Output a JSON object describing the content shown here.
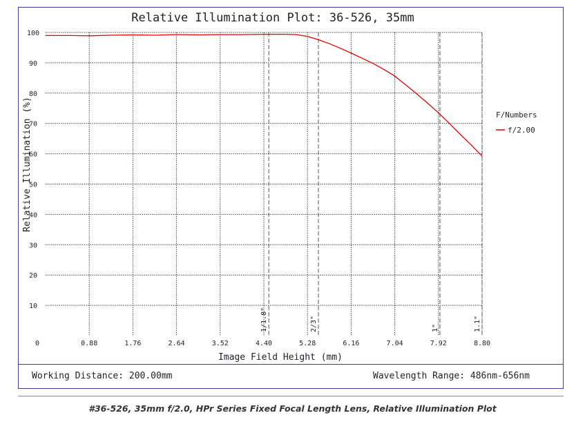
{
  "chart_data": {
    "type": "line",
    "title": "Relative Illumination Plot: 36-526, 35mm",
    "xlabel": "Image Field Height (mm)",
    "ylabel": "Relative Illumination (%)",
    "xlim": [
      0,
      8.8
    ],
    "ylim": [
      0,
      100
    ],
    "xticks": [
      "0",
      "0.88",
      "1.76",
      "2.64",
      "3.52",
      "4.40",
      "5.28",
      "6.16",
      "7.04",
      "7.92",
      "8.80"
    ],
    "yticks": [
      "10",
      "20",
      "30",
      "40",
      "50",
      "60",
      "70",
      "80",
      "90",
      "100"
    ],
    "grid": true,
    "legend": {
      "title": "F/Numbers",
      "placement": "right"
    },
    "series": [
      {
        "name": "f/2.00",
        "color": "#e00000",
        "x": [
          0,
          0.44,
          0.88,
          1.32,
          1.76,
          2.2,
          2.64,
          3.08,
          3.52,
          3.96,
          4.4,
          4.84,
          5.06,
          5.28,
          5.5,
          5.72,
          5.94,
          6.16,
          6.38,
          6.6,
          6.82,
          7.04,
          7.26,
          7.48,
          7.7,
          7.92,
          8.14,
          8.36,
          8.58,
          8.8
        ],
        "y": [
          99.0,
          99.0,
          98.9,
          99.1,
          99.2,
          99.1,
          99.3,
          99.2,
          99.3,
          99.3,
          99.4,
          99.4,
          99.3,
          98.7,
          97.6,
          96.3,
          94.8,
          93.2,
          91.5,
          89.8,
          87.8,
          85.6,
          82.7,
          79.8,
          76.7,
          73.5,
          70.0,
          66.4,
          62.9,
          59.2
        ]
      }
    ],
    "sensor_markers": [
      {
        "label": "1/1.8\"",
        "x": 4.5
      },
      {
        "label": "2/3\"",
        "x": 5.5
      },
      {
        "label": "1\"",
        "x": 7.95
      },
      {
        "label": "1.1\"",
        "x": 8.8
      }
    ]
  },
  "footer": {
    "working_distance": "Working Distance: 200.00mm",
    "wavelength_range": "Wavelength Range: 486nm-656nm"
  },
  "caption": "#36-526, 35mm f/2.0, HPr Series Fixed Focal Length Lens, Relative Illumination Plot"
}
